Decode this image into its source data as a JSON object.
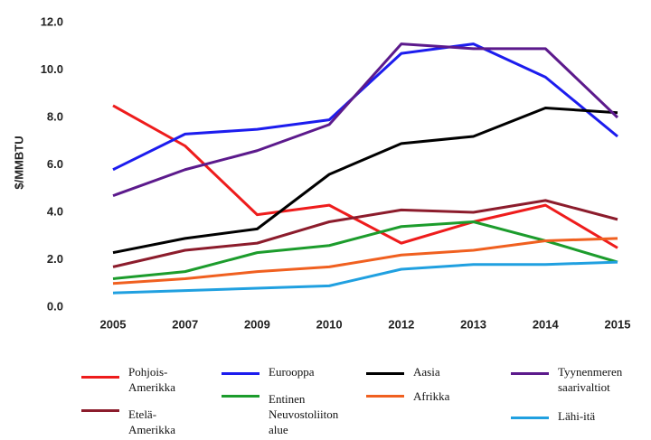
{
  "chart_data": {
    "type": "line",
    "y_label": "$/MMBTU",
    "categories": [
      "2005",
      "2007",
      "2009",
      "2010",
      "2012",
      "2013",
      "2014",
      "2015"
    ],
    "ylim": [
      0,
      12
    ],
    "yticks": [
      {
        "value": 0,
        "label": "0.0"
      },
      {
        "value": 2,
        "label": "2.0"
      },
      {
        "value": 4,
        "label": "4.0"
      },
      {
        "value": 6,
        "label": "6.0"
      },
      {
        "value": 8,
        "label": "8.0"
      },
      {
        "value": 10,
        "label": "10.0"
      },
      {
        "value": 12,
        "label": "12.0"
      }
    ],
    "grid": false,
    "series": [
      {
        "name": "Pohjois-\nAmerikka",
        "color": "#ee1c1c",
        "values": [
          8.5,
          6.8,
          3.9,
          4.3,
          2.7,
          3.6,
          4.3,
          2.5
        ]
      },
      {
        "name": "Eurooppa",
        "color": "#1c1cee",
        "values": [
          5.8,
          7.3,
          7.5,
          7.9,
          10.7,
          11.1,
          9.7,
          7.2
        ]
      },
      {
        "name": "Aasia",
        "color": "#000000",
        "values": [
          2.3,
          2.9,
          3.3,
          5.6,
          6.9,
          7.2,
          8.4,
          8.2
        ]
      },
      {
        "name": "Tyynenmeren\nsaarivaltiot",
        "color": "#5c1a8c",
        "values": [
          4.7,
          5.8,
          6.6,
          7.7,
          11.1,
          10.9,
          10.9,
          8.0
        ]
      },
      {
        "name": "Etelä-\nAmerikka",
        "color": "#8c1c2c",
        "values": [
          1.7,
          2.4,
          2.7,
          3.6,
          4.1,
          4.0,
          4.5,
          3.7
        ]
      },
      {
        "name": "Entinen\nNeuvostoliiton\nalue",
        "color": "#1c9c2c",
        "values": [
          1.2,
          1.5,
          2.3,
          2.6,
          3.4,
          3.6,
          2.8,
          1.9
        ]
      },
      {
        "name": "Afrikka",
        "color": "#f06020",
        "values": [
          1.0,
          1.2,
          1.5,
          1.7,
          2.2,
          2.4,
          2.8,
          2.9
        ]
      },
      {
        "name": "Lähi-itä",
        "color": "#20a0e0",
        "values": [
          0.6,
          0.7,
          0.8,
          0.9,
          1.6,
          1.8,
          1.8,
          1.9
        ]
      }
    ]
  }
}
